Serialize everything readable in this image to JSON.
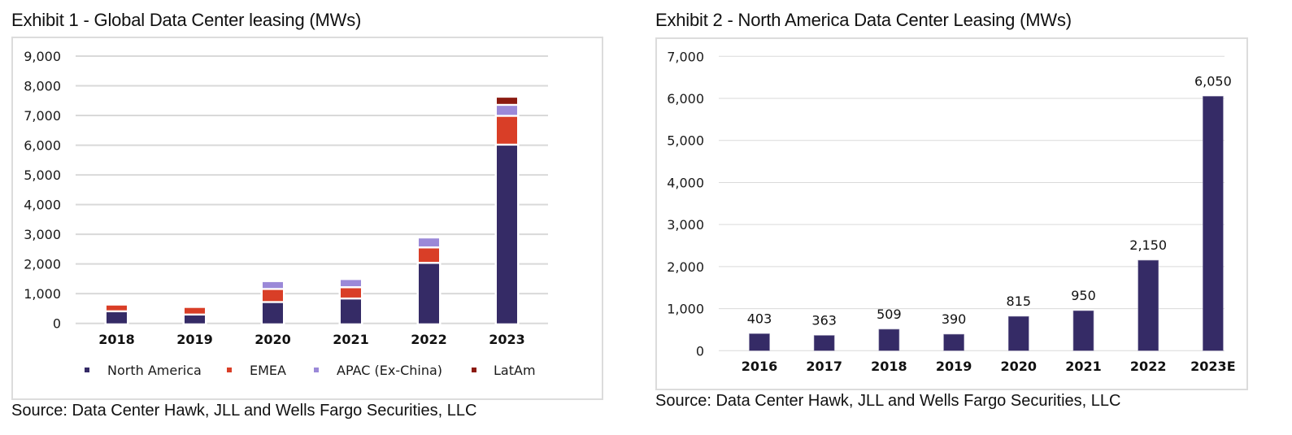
{
  "exhibit1": {
    "title": "Exhibit 1 - Global Data Center leasing (MWs)",
    "source": "Source: Data Center Hawk, JLL and Wells Fargo Securities, LLC"
  },
  "exhibit2": {
    "title": "Exhibit 2 - North America Data Center Leasing (MWs)",
    "source": "Source: Data Center Hawk, JLL and Wells Fargo Securities, LLC"
  },
  "chart_data": [
    {
      "type": "bar",
      "stacked": true,
      "title": "Exhibit 1 - Global Data Center leasing (MWs)",
      "xlabel": "",
      "ylabel": "",
      "categories": [
        "2018",
        "2019",
        "2020",
        "2021",
        "2022",
        "2023"
      ],
      "series": [
        {
          "name": "North America",
          "color": "#352B66",
          "values": [
            440,
            330,
            750,
            870,
            2070,
            6050
          ]
        },
        {
          "name": "EMEA",
          "color": "#D93E27",
          "values": [
            160,
            190,
            440,
            380,
            520,
            970
          ]
        },
        {
          "name": "APAC (Ex-China)",
          "color": "#9B89D8",
          "values": [
            0,
            0,
            200,
            210,
            270,
            370
          ]
        },
        {
          "name": "LatAm",
          "color": "#8B1A10",
          "values": [
            0,
            0,
            0,
            0,
            0,
            210
          ]
        }
      ],
      "ylim": [
        0,
        9000
      ],
      "yticks": [
        0,
        1000,
        2000,
        3000,
        4000,
        5000,
        6000,
        7000,
        8000,
        9000
      ],
      "ytick_labels": [
        "0",
        "1,000",
        "2,000",
        "3,000",
        "4,000",
        "5,000",
        "6,000",
        "7,000",
        "8,000",
        "9,000"
      ],
      "grid": true,
      "legend": "bottom"
    },
    {
      "type": "bar",
      "title": "Exhibit 2 - North America Data Center Leasing (MWs)",
      "xlabel": "",
      "ylabel": "",
      "categories": [
        "2016",
        "2017",
        "2018",
        "2019",
        "2020",
        "2021",
        "2022",
        "2023E"
      ],
      "values": [
        403,
        363,
        509,
        390,
        815,
        950,
        2150,
        6050
      ],
      "data_labels": [
        "403",
        "363",
        "509",
        "390",
        "815",
        "950",
        "2,150",
        "6,050"
      ],
      "color": "#352B66",
      "ylim": [
        0,
        7000
      ],
      "yticks": [
        0,
        1000,
        2000,
        3000,
        4000,
        5000,
        6000,
        7000
      ],
      "ytick_labels": [
        "0",
        "1,000",
        "2,000",
        "3,000",
        "4,000",
        "5,000",
        "6,000",
        "7,000"
      ],
      "grid": true,
      "legend": "none"
    }
  ]
}
